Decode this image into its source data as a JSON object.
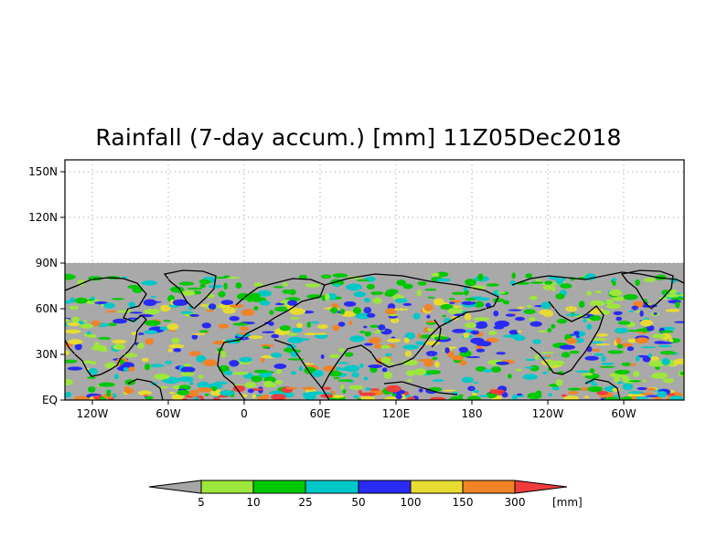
{
  "title": "Rainfall (7-day accum.) [mm] 11Z05Dec2018",
  "map": {
    "lat_labels": [
      "150N",
      "120N",
      "90N",
      "60N",
      "30N",
      "EQ"
    ],
    "lon_labels": [
      "120W",
      "60W",
      "0",
      "60E",
      "120E",
      "180",
      "120W",
      "60W"
    ],
    "no_data_color": "#a9a9a9",
    "background_color": "#ffffff"
  },
  "colorbar": {
    "labels": [
      "5",
      "10",
      "25",
      "50",
      "100",
      "150",
      "300"
    ],
    "unit": "[mm]",
    "colors": [
      "#a6a6a6",
      "#9de63c",
      "#00c800",
      "#00c8c8",
      "#2a2af5",
      "#e6dc32",
      "#f08228",
      "#f03c3c"
    ],
    "color_names": [
      "below-5",
      "5-10",
      "10-25",
      "25-50",
      "50-100",
      "100-150",
      "150-300",
      "above-300"
    ]
  }
}
